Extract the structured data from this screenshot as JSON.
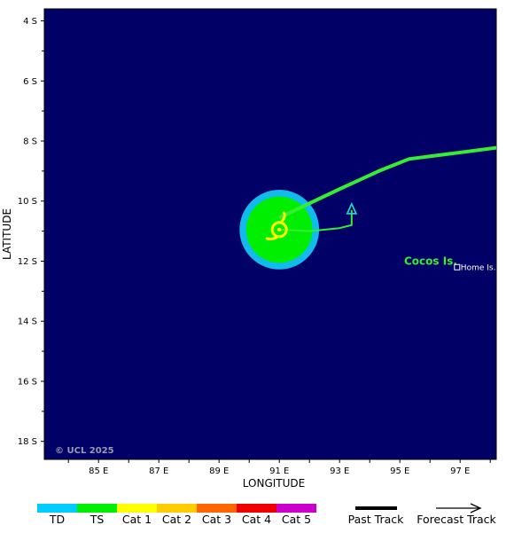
{
  "map": {
    "background_color": "#000066",
    "copyright": "© UCL 2025",
    "x_axis_title": "LONGITUDE",
    "y_axis_title": "LATITUDE",
    "lat_labels": [
      "4 S",
      "6 S",
      "8 S",
      "10 S",
      "12 S",
      "14 S",
      "16 S",
      "18 S"
    ],
    "lon_labels": [
      "85 E",
      "87 E",
      "89 E",
      "91 E",
      "93 E",
      "95 E",
      "97 E"
    ],
    "lon_range": [
      83.2,
      98.2
    ],
    "lat_range": [
      -3.6,
      -18.6
    ],
    "places": {
      "island_group": {
        "label": "Cocos Is.",
        "lon": 96.2,
        "lat": -12.0,
        "color": "#33ee33"
      },
      "home_island": {
        "label": "Home Is.",
        "lon": 96.9,
        "lat": -12.2
      }
    },
    "storm": {
      "center_lon": 91.0,
      "center_lat": -10.95,
      "td_radius_deg": 1.32,
      "ts_radius_deg": 1.1,
      "td_color": "#11bbee",
      "ts_color": "#00ee00",
      "symbol_color": "#ffff00"
    },
    "past_track": {
      "color": "#33ee33",
      "points_lonlat": [
        [
          98.4,
          -8.2
        ],
        [
          95.3,
          -8.6
        ],
        [
          94.3,
          -9.0
        ],
        [
          93.0,
          -9.6
        ],
        [
          91.0,
          -10.55
        ]
      ]
    },
    "forecast_track": {
      "color": "#33ee33",
      "arrow_color": "#22cccc",
      "points_lonlat": [
        [
          91.0,
          -10.95
        ],
        [
          92.0,
          -11.0
        ],
        [
          93.0,
          -10.9
        ],
        [
          93.4,
          -10.8
        ],
        [
          93.4,
          -10.3
        ]
      ]
    }
  },
  "legend": {
    "scale": [
      {
        "label": "TD",
        "color": "#00ccff"
      },
      {
        "label": "TS",
        "color": "#00ee00"
      },
      {
        "label": "Cat 1",
        "color": "#ffff00"
      },
      {
        "label": "Cat 2",
        "color": "#ffcc00"
      },
      {
        "label": "Cat 3",
        "color": "#ff6600"
      },
      {
        "label": "Cat 4",
        "color": "#ee0000"
      },
      {
        "label": "Cat 5",
        "color": "#cc00cc"
      }
    ],
    "past_track_label": "Past Track",
    "forecast_track_label": "Forecast Track"
  }
}
